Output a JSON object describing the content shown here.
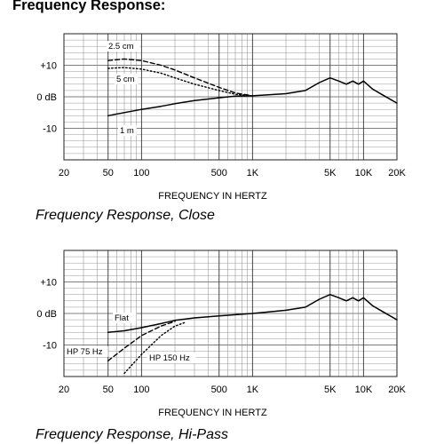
{
  "header": {
    "title": "Frequency Response:"
  },
  "chart_data": [
    {
      "type": "line",
      "title": "Frequency Response, Close",
      "xlabel": "FREQUENCY IN HERTZ",
      "ylabel": "",
      "x_scale": "log",
      "xlim": [
        20,
        20000
      ],
      "ylim": [
        -20,
        20
      ],
      "x_ticks": [
        "20",
        "50",
        "100",
        "500",
        "1K",
        "5K",
        "10K",
        "20K"
      ],
      "y_ticks": [
        "+10",
        "0 dB",
        "-10"
      ],
      "y_tick_values": [
        10,
        0,
        -10
      ],
      "grid": true,
      "series": [
        {
          "name": "1 m",
          "style": "solid",
          "x": [
            50,
            70,
            100,
            150,
            200,
            300,
            500,
            700,
            1000,
            2000,
            3000,
            4000,
            5000,
            6000,
            7000,
            8000,
            9000,
            10000,
            12000,
            15000,
            20000
          ],
          "y": [
            -6,
            -5,
            -4,
            -3,
            -2.2,
            -1.2,
            -0.3,
            0.2,
            0.3,
            1,
            2,
            4.5,
            6,
            5,
            4,
            5,
            4,
            5,
            2.5,
            0.5,
            -2
          ]
        },
        {
          "name": "5 cm",
          "style": "dotted",
          "x": [
            50,
            70,
            100,
            150,
            200,
            300,
            500,
            700,
            1000
          ],
          "y": [
            9,
            9.3,
            8.8,
            7.5,
            6,
            4,
            2,
            0.8,
            0.3
          ]
        },
        {
          "name": "2.5 cm",
          "style": "dashed",
          "x": [
            50,
            70,
            100,
            150,
            200,
            300,
            500,
            700,
            1000
          ],
          "y": [
            11.5,
            12,
            11.5,
            10,
            8.5,
            6,
            3,
            1.2,
            0.3
          ]
        }
      ],
      "annotations": [
        "2.5 cm",
        "5 cm",
        "1 m"
      ]
    },
    {
      "type": "line",
      "title": "Frequency Response, Hi-Pass",
      "xlabel": "FREQUENCY IN HERTZ",
      "ylabel": "",
      "x_scale": "log",
      "xlim": [
        20,
        20000
      ],
      "ylim": [
        -20,
        20
      ],
      "x_ticks": [
        "20",
        "50",
        "100",
        "500",
        "1K",
        "5K",
        "10K",
        "20K"
      ],
      "y_ticks": [
        "+10",
        "0 dB",
        "-10"
      ],
      "y_tick_values": [
        10,
        0,
        -10
      ],
      "grid": true,
      "series": [
        {
          "name": "Flat",
          "style": "solid",
          "x": [
            50,
            70,
            100,
            150,
            200,
            300,
            500,
            700,
            1000,
            2000,
            3000,
            4000,
            5000,
            6000,
            7000,
            8000,
            9000,
            10000,
            12000,
            15000,
            20000
          ],
          "y": [
            -6,
            -5.5,
            -4.5,
            -3.2,
            -2.2,
            -1.4,
            -0.8,
            -0.4,
            0,
            1,
            2,
            4.5,
            6,
            5,
            4,
            5,
            4,
            5,
            2.5,
            0.5,
            -2
          ]
        },
        {
          "name": "HP 75 Hz",
          "style": "dashed",
          "x": [
            50,
            70,
            100,
            150,
            200
          ],
          "y": [
            -15,
            -11,
            -7,
            -4,
            -2.5
          ]
        },
        {
          "name": "HP 150 Hz",
          "style": "dotted",
          "x": [
            70,
            100,
            150,
            200,
            250
          ],
          "y": [
            -19,
            -13,
            -7,
            -4,
            -2.8
          ]
        }
      ],
      "annotations": [
        "Flat",
        "HP 75 Hz",
        "HP 150 Hz"
      ]
    }
  ]
}
